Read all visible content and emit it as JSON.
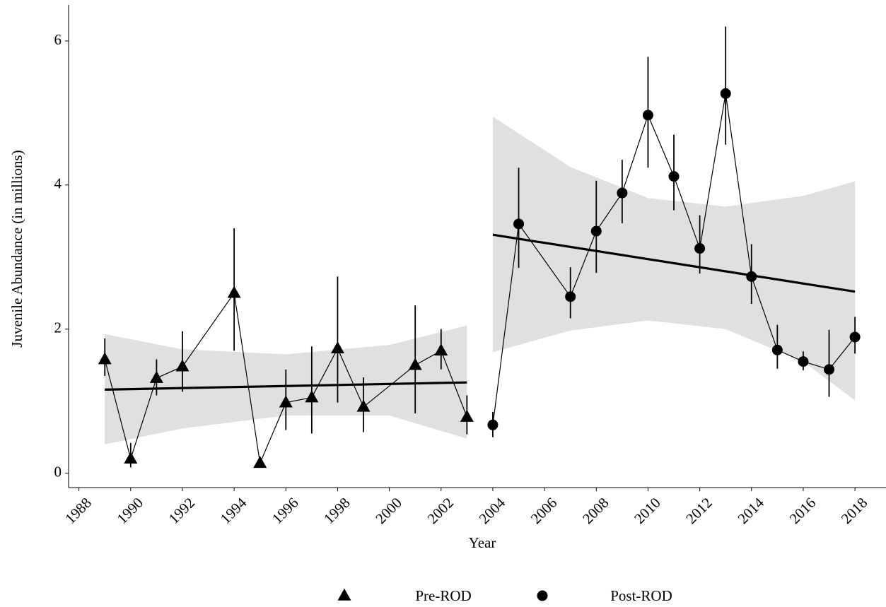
{
  "chart_data": {
    "type": "line",
    "x_label": "Year",
    "y_label": "Juvenile Abundance (in millions)",
    "xlim": [
      1987.6,
      2019.2
    ],
    "ylim": [
      -0.2,
      6.5
    ],
    "xticks": [
      1988,
      1990,
      1992,
      1994,
      1996,
      1998,
      2000,
      2002,
      2004,
      2006,
      2008,
      2010,
      2012,
      2014,
      2016,
      2018
    ],
    "yticks": [
      0,
      2,
      4,
      6
    ],
    "band_color": "#e0e0e0",
    "series": [
      {
        "name": "Pre-ROD",
        "marker": "triangle",
        "color": "#000000",
        "x": [
          1989,
          1990,
          1991,
          1992,
          1994,
          1995,
          1996,
          1997,
          1998,
          1999,
          2001,
          2002,
          2003
        ],
        "values": [
          1.58,
          0.2,
          1.32,
          1.48,
          2.5,
          0.14,
          0.98,
          1.05,
          1.73,
          0.92,
          1.5,
          1.7,
          0.78
        ],
        "lower": [
          1.35,
          0.08,
          1.08,
          1.13,
          1.7,
          0.1,
          0.6,
          0.55,
          0.98,
          0.57,
          0.83,
          1.44,
          0.54
        ],
        "upper": [
          1.87,
          0.42,
          1.58,
          1.97,
          3.4,
          0.2,
          1.44,
          1.76,
          2.73,
          1.33,
          2.33,
          2.0,
          1.08
        ],
        "trend": {
          "x": [
            1989,
            2003
          ],
          "values": [
            1.16,
            1.26
          ]
        },
        "band": {
          "x": [
            1989,
            1992,
            1996,
            2000,
            2003
          ],
          "upper": [
            1.93,
            1.72,
            1.65,
            1.78,
            2.05
          ],
          "lower": [
            0.4,
            0.62,
            0.8,
            0.8,
            0.48
          ]
        }
      },
      {
        "name": "Post-ROD",
        "marker": "circle",
        "color": "#000000",
        "x": [
          2004,
          2005,
          2007,
          2008,
          2009,
          2010,
          2011,
          2012,
          2013,
          2014,
          2015,
          2016,
          2017,
          2018
        ],
        "values": [
          0.67,
          3.46,
          2.45,
          3.36,
          3.89,
          4.97,
          4.12,
          3.12,
          5.27,
          2.73,
          1.71,
          1.55,
          1.44,
          1.89
        ],
        "lower": [
          0.5,
          2.85,
          2.15,
          2.78,
          3.47,
          4.24,
          3.65,
          2.77,
          4.56,
          2.35,
          1.45,
          1.43,
          1.06,
          1.66
        ],
        "upper": [
          0.85,
          4.24,
          2.86,
          4.06,
          4.35,
          5.78,
          4.7,
          3.58,
          6.2,
          3.18,
          2.06,
          1.69,
          1.99,
          2.17
        ],
        "trend": {
          "x": [
            2004,
            2018
          ],
          "values": [
            3.31,
            2.52
          ]
        },
        "band": {
          "x": [
            2004,
            2007,
            2010,
            2013,
            2016,
            2018
          ],
          "upper": [
            4.95,
            4.25,
            3.82,
            3.7,
            3.85,
            4.05
          ],
          "lower": [
            1.68,
            1.98,
            2.12,
            2.0,
            1.55,
            1.01
          ]
        }
      }
    ]
  }
}
